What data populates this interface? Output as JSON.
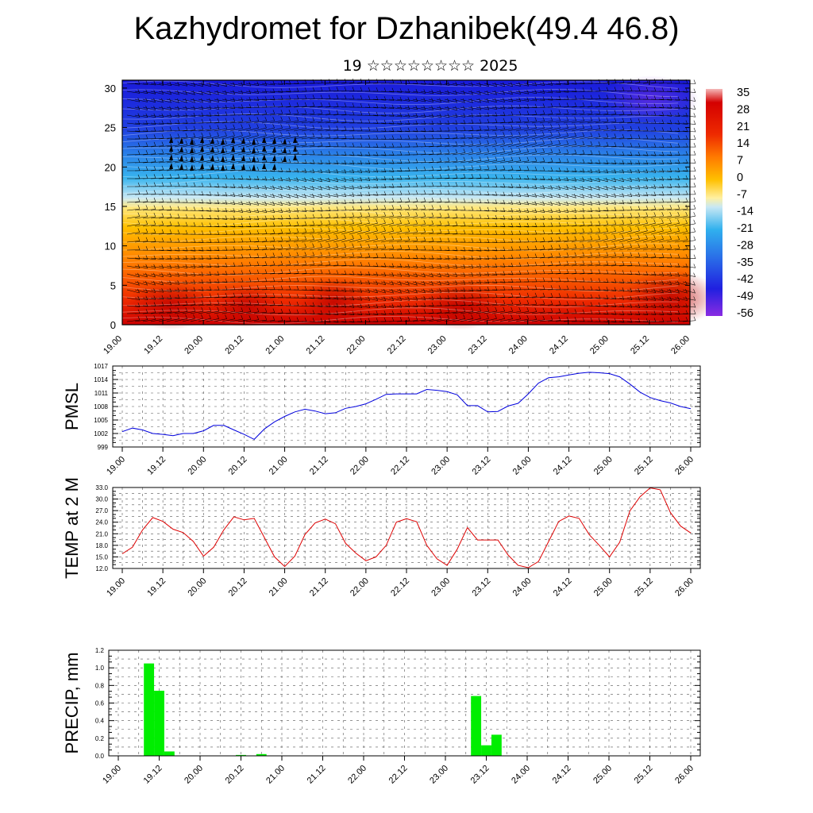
{
  "page": {
    "title": "Kazhydromet for Dzhanibek(49.4 46.8)",
    "subtitle": "19 ☆☆☆☆☆☆☆☆ 2025"
  },
  "colors": {
    "pmsl_line": "#0000dd",
    "temp_line": "#dd0000",
    "precip_bar": "#00ee00",
    "wind_barb": "#000000",
    "colorbar": [
      "#8a2be2",
      "#3030e0",
      "#1e5ef0",
      "#3a8cf0",
      "#30b8f0",
      "#a8def8",
      "#ffffc0",
      "#ffe040",
      "#ffb000",
      "#ff7a00",
      "#f04000",
      "#dd0000",
      "#bb0000",
      "#f0b0b0"
    ]
  },
  "chart_data": [
    {
      "type": "heatmap",
      "name": "cross-section",
      "xlabel": "",
      "ylabel": "",
      "x_ticks": [
        "19.00",
        "19.12",
        "20.00",
        "20.12",
        "21.00",
        "21.12",
        "22.00",
        "22.12",
        "23.00",
        "23.12",
        "24.00",
        "24.12",
        "25.00",
        "25.12",
        "26.00"
      ],
      "y_ticks": [
        "0",
        "5",
        "10",
        "15",
        "20",
        "25",
        "30"
      ],
      "ylim": [
        0,
        31
      ],
      "colorbar_labels": [
        "35",
        "28",
        "21",
        "14",
        "7",
        "0",
        "-7",
        "-14",
        "-21",
        "-28",
        "-35",
        "-42",
        "-49",
        "-56"
      ],
      "levels": [
        35,
        28,
        21,
        14,
        7,
        0,
        -7,
        -14,
        -21,
        -28,
        -35,
        -42,
        -49,
        -56
      ]
    },
    {
      "type": "line",
      "name": "PMSL",
      "ylabel": "PMSL",
      "x_ticks": [
        "19.00",
        "19.12",
        "20.00",
        "20.12",
        "21.00",
        "21.12",
        "22.00",
        "22.12",
        "23.00",
        "23.12",
        "24.00",
        "24.12",
        "25.00",
        "25.12",
        "26.00"
      ],
      "y_ticks": [
        "999",
        "1002",
        "1005",
        "1008",
        "1011",
        "1014",
        "1017"
      ],
      "ylim": [
        999,
        1017
      ],
      "x": [
        0,
        3,
        6,
        9,
        12,
        15,
        18,
        21,
        24,
        27,
        30,
        33,
        36,
        39,
        42,
        45,
        48,
        51,
        54,
        57,
        60,
        63,
        66,
        69,
        72,
        75,
        78,
        81,
        84,
        87,
        90,
        93,
        96,
        99,
        102,
        105,
        108,
        111,
        114,
        117,
        120,
        123,
        126,
        129,
        132,
        135,
        138,
        141,
        144,
        147,
        150,
        153,
        156,
        159,
        162,
        165,
        168
      ],
      "values": [
        1002.4,
        1003.2,
        1002.8,
        1002.0,
        1001.8,
        1001.5,
        1002.0,
        1002.0,
        1002.6,
        1003.8,
        1003.8,
        1002.8,
        1001.8,
        1000.7,
        1003.0,
        1004.6,
        1005.8,
        1006.8,
        1007.4,
        1007.0,
        1006.4,
        1006.6,
        1007.6,
        1008.0,
        1008.6,
        1009.6,
        1010.7,
        1010.8,
        1010.8,
        1010.8,
        1011.8,
        1011.6,
        1011.3,
        1010.6,
        1008.2,
        1008.2,
        1006.8,
        1006.9,
        1008.1,
        1008.7,
        1010.8,
        1013.2,
        1014.4,
        1014.6,
        1015.0,
        1015.4,
        1015.6,
        1015.5,
        1015.3,
        1014.6,
        1013.0,
        1011.2,
        1010.0,
        1009.3,
        1008.8,
        1008.0,
        1007.5
      ]
    },
    {
      "type": "line",
      "name": "TEMP at 2 M",
      "ylabel": "TEMP at 2 M",
      "x_ticks": [
        "19.00",
        "19.12",
        "20.00",
        "20.12",
        "21.00",
        "21.12",
        "22.00",
        "22.12",
        "23.00",
        "23.12",
        "24.00",
        "24.12",
        "25.00",
        "25.12",
        "26.00"
      ],
      "y_ticks": [
        "12.0",
        "15.0",
        "18.0",
        "21.0",
        "24.0",
        "27.0",
        "30.0",
        "33.0"
      ],
      "ylim": [
        12,
        33
      ],
      "x": [
        0,
        3,
        6,
        9,
        12,
        15,
        18,
        21,
        24,
        27,
        30,
        33,
        36,
        39,
        42,
        45,
        48,
        51,
        54,
        57,
        60,
        63,
        66,
        69,
        72,
        75,
        78,
        81,
        84,
        87,
        90,
        93,
        96,
        99,
        102,
        105,
        108,
        111,
        114,
        117,
        120,
        123,
        126,
        129,
        132,
        135,
        138,
        141,
        144,
        147,
        150,
        153,
        156,
        159,
        162,
        165,
        168
      ],
      "values": [
        15.8,
        17.5,
        22.0,
        25.2,
        24.2,
        22.2,
        21.3,
        19.0,
        15.2,
        17.5,
        22.0,
        25.4,
        24.6,
        25.0,
        20.0,
        15.0,
        12.5,
        15.2,
        20.8,
        23.8,
        24.8,
        23.6,
        18.5,
        16.0,
        14.0,
        15.0,
        18.0,
        24.0,
        24.9,
        24.1,
        18.0,
        14.5,
        12.8,
        17.0,
        22.6,
        19.4,
        19.4,
        19.4,
        15.5,
        12.8,
        12.2,
        13.8,
        19.0,
        24.2,
        25.6,
        25.0,
        20.8,
        18.0,
        15.0,
        18.8,
        26.9,
        30.6,
        32.9,
        32.4,
        26.5,
        23.0,
        21.2
      ]
    },
    {
      "type": "bar",
      "name": "PRECIP, mm",
      "ylabel": "PRECIP, mm",
      "x_ticks": [
        "19.00",
        "19.12",
        "20.00",
        "20.12",
        "21.00",
        "21.12",
        "22.00",
        "22.12",
        "23.00",
        "23.12",
        "24.00",
        "24.12",
        "25.00",
        "25.12",
        "26.00"
      ],
      "y_ticks": [
        "0.0",
        "0.2",
        "0.4",
        "0.6",
        "0.8",
        "1.0",
        "1.2"
      ],
      "ylim": [
        0,
        1.2
      ],
      "x": [
        9,
        12,
        15,
        36,
        42,
        105,
        108,
        111
      ],
      "values": [
        1.05,
        0.74,
        0.05,
        0.01,
        0.02,
        0.68,
        0.12,
        0.24
      ]
    }
  ]
}
